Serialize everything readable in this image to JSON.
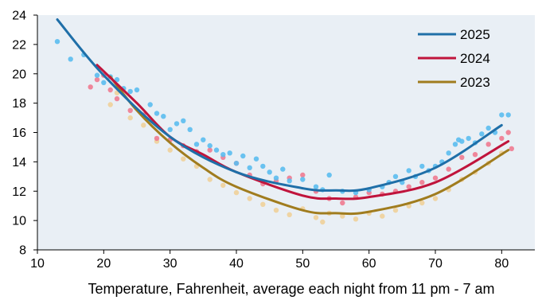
{
  "chart_data": {
    "type": "scatter",
    "title": "",
    "xlabel": "Temperature, Fahrenheit, average each night from 11 pm - 7 am",
    "ylabel": "",
    "xlim": [
      10,
      85
    ],
    "ylim": [
      8,
      24
    ],
    "x_ticks": [
      10,
      20,
      30,
      40,
      50,
      60,
      70,
      80
    ],
    "y_ticks": [
      8,
      10,
      12,
      14,
      16,
      18,
      20,
      22,
      24
    ],
    "grid": false,
    "legend_position": "top-right",
    "background_color": "#e9eff5",
    "series": [
      {
        "name": "2025",
        "line_color": "#1f6fa8",
        "point_color": "#5bbcf0",
        "trend": [
          [
            13,
            23.7
          ],
          [
            20,
            19.9
          ],
          [
            30,
            15.7
          ],
          [
            40,
            13.3
          ],
          [
            50,
            12.2
          ],
          [
            55,
            12.05
          ],
          [
            60,
            12.2
          ],
          [
            70,
            13.6
          ],
          [
            80,
            16.5
          ]
        ],
        "points": [
          [
            13,
            22.2
          ],
          [
            15,
            21.0
          ],
          [
            17,
            21.3
          ],
          [
            19,
            19.9
          ],
          [
            20,
            19.4
          ],
          [
            21,
            19.8
          ],
          [
            22,
            19.6
          ],
          [
            23,
            19.0
          ],
          [
            24,
            18.8
          ],
          [
            25,
            18.9
          ],
          [
            27,
            17.9
          ],
          [
            28,
            17.3
          ],
          [
            29,
            17.1
          ],
          [
            30,
            16.2
          ],
          [
            31,
            16.6
          ],
          [
            32,
            16.8
          ],
          [
            33,
            16.2
          ],
          [
            34,
            15.2
          ],
          [
            35,
            15.5
          ],
          [
            36,
            15.1
          ],
          [
            37,
            14.8
          ],
          [
            38,
            14.5
          ],
          [
            39,
            14.6
          ],
          [
            40,
            13.9
          ],
          [
            41,
            14.4
          ],
          [
            42,
            13.6
          ],
          [
            43,
            14.2
          ],
          [
            44,
            13.7
          ],
          [
            45,
            13.3
          ],
          [
            46,
            12.9
          ],
          [
            47,
            13.5
          ],
          [
            48,
            12.7
          ],
          [
            50,
            12.8
          ],
          [
            52,
            12.3
          ],
          [
            53,
            12.1
          ],
          [
            54,
            13.1
          ],
          [
            56,
            12.0
          ],
          [
            58,
            11.9
          ],
          [
            60,
            12.1
          ],
          [
            62,
            12.3
          ],
          [
            63,
            12.6
          ],
          [
            64,
            13.0
          ],
          [
            65,
            12.6
          ],
          [
            66,
            13.4
          ],
          [
            67,
            13.0
          ],
          [
            68,
            13.7
          ],
          [
            69,
            13.4
          ],
          [
            70,
            13.7
          ],
          [
            71,
            14.0
          ],
          [
            72,
            14.6
          ],
          [
            73,
            15.2
          ],
          [
            73.5,
            15.5
          ],
          [
            74,
            15.4
          ],
          [
            75,
            15.6
          ],
          [
            76,
            15.3
          ],
          [
            77,
            15.9
          ],
          [
            78,
            16.3
          ],
          [
            79,
            16.0
          ],
          [
            80,
            17.2
          ],
          [
            81,
            17.2
          ]
        ]
      },
      {
        "name": "2024",
        "line_color": "#c0143c",
        "point_color": "#f07a90",
        "trend": [
          [
            19,
            20.6
          ],
          [
            25,
            18.0
          ],
          [
            30,
            15.7
          ],
          [
            35,
            14.5
          ],
          [
            40,
            13.3
          ],
          [
            50,
            11.7
          ],
          [
            55,
            11.5
          ],
          [
            60,
            11.6
          ],
          [
            70,
            12.6
          ],
          [
            81,
            15.4
          ]
        ],
        "points": [
          [
            18,
            19.1
          ],
          [
            19,
            19.6
          ],
          [
            20,
            19.9
          ],
          [
            21,
            18.9
          ],
          [
            22,
            18.3
          ],
          [
            24,
            17.5
          ],
          [
            26,
            17.2
          ],
          [
            28,
            15.6
          ],
          [
            30,
            15.5
          ],
          [
            32,
            15.1
          ],
          [
            34,
            14.7
          ],
          [
            36,
            14.8
          ],
          [
            38,
            14.3
          ],
          [
            40,
            13.9
          ],
          [
            42,
            13.1
          ],
          [
            44,
            12.5
          ],
          [
            46,
            12.7
          ],
          [
            48,
            12.9
          ],
          [
            50,
            13.1
          ],
          [
            52,
            12.0
          ],
          [
            54,
            11.5
          ],
          [
            56,
            11.2
          ],
          [
            58,
            11.6
          ],
          [
            60,
            11.9
          ],
          [
            62,
            11.8
          ],
          [
            64,
            12.0
          ],
          [
            66,
            12.3
          ],
          [
            68,
            12.6
          ],
          [
            70,
            12.9
          ],
          [
            72,
            13.5
          ],
          [
            74,
            14.3
          ],
          [
            76,
            14.5
          ],
          [
            78,
            15.2
          ],
          [
            80,
            15.6
          ],
          [
            81,
            16.0
          ],
          [
            81.5,
            14.9
          ]
        ]
      },
      {
        "name": "2023",
        "line_color": "#a07c1e",
        "point_color": "#f0d09a",
        "trend": [
          [
            21,
            19.8
          ],
          [
            25,
            17.5
          ],
          [
            30,
            15.3
          ],
          [
            35,
            13.6
          ],
          [
            40,
            12.3
          ],
          [
            50,
            10.7
          ],
          [
            55,
            10.5
          ],
          [
            60,
            10.6
          ],
          [
            70,
            11.8
          ],
          [
            81,
            14.8
          ]
        ],
        "points": [
          [
            21,
            17.9
          ],
          [
            22,
            18.7
          ],
          [
            24,
            17.0
          ],
          [
            26,
            16.5
          ],
          [
            28,
            15.4
          ],
          [
            30,
            14.8
          ],
          [
            32,
            14.2
          ],
          [
            34,
            13.7
          ],
          [
            36,
            12.8
          ],
          [
            38,
            12.4
          ],
          [
            40,
            11.9
          ],
          [
            42,
            11.5
          ],
          [
            44,
            11.1
          ],
          [
            46,
            10.7
          ],
          [
            48,
            10.4
          ],
          [
            50,
            10.8
          ],
          [
            52,
            10.2
          ],
          [
            53,
            9.9
          ],
          [
            54,
            10.5
          ],
          [
            56,
            10.3
          ],
          [
            58,
            10.1
          ],
          [
            60,
            10.5
          ],
          [
            62,
            10.3
          ],
          [
            64,
            10.7
          ],
          [
            66,
            11.0
          ],
          [
            68,
            11.2
          ],
          [
            70,
            11.5
          ],
          [
            72,
            12.1
          ],
          [
            74,
            12.8
          ],
          [
            76,
            13.3
          ],
          [
            78,
            13.9
          ],
          [
            80,
            14.6
          ]
        ]
      }
    ]
  }
}
